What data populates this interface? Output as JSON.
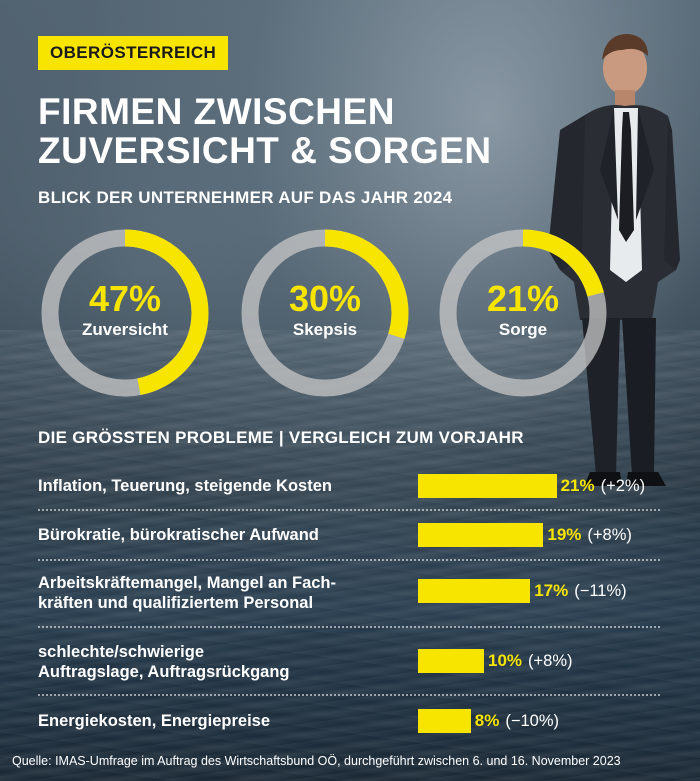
{
  "region_tag": "OBERÖSTERREICH",
  "title_line1": "FIRMEN ZWISCHEN",
  "title_line2": "ZUVERSICHT & SORGEN",
  "subtitle": "BLICK DER UNTERNEHMER AUF DAS JAHR 2024",
  "colors": {
    "accent": "#f7e500",
    "ring_track": "#c8c8c8",
    "text": "#ffffff"
  },
  "chart_data": [
    {
      "type": "pie",
      "title": "BLICK DER UNTERNEHMER AUF DAS JAHR 2024",
      "categories": [
        "Zuversicht",
        "Skepsis",
        "Sorge"
      ],
      "values": [
        47,
        30,
        21
      ],
      "value_labels": [
        "47%",
        "30%",
        "21%"
      ],
      "unit": "%"
    },
    {
      "type": "bar",
      "title": "DIE GRÖSSTEN PROBLEME | VERGLEICH ZUM VORJAHR",
      "categories": [
        "Inflation, Teuerung, steigende Kosten",
        "Bürokratie, bürokratischer Aufwand",
        "Arbeitskräftemangel, Mangel an Fach-kräften und qualifiziertem Personal",
        "schlechte/schwierige Auftragslage, Auftragsrückgang",
        "Energiekosten, Energiepreise"
      ],
      "values": [
        21,
        19,
        17,
        10,
        8
      ],
      "value_labels": [
        "21%",
        "19%",
        "17%",
        "10%",
        "8%"
      ],
      "changes": [
        "(+2%)",
        "(+8%)",
        "(−11%)",
        "(+8%)",
        "(−10%)"
      ],
      "unit": "%"
    }
  ],
  "donuts": [
    {
      "pct": "47%",
      "label": "Zuversicht"
    },
    {
      "pct": "30%",
      "label": "Skepsis"
    },
    {
      "pct": "21%",
      "label": "Sorge"
    }
  ],
  "problems_heading": "DIE GRÖSSTEN PROBLEME | VERGLEICH ZUM VORJAHR",
  "problems": [
    {
      "line1": "Inflation, Teuerung, steigende Kosten",
      "line2": "",
      "value": "21%",
      "change": "(+2%)"
    },
    {
      "line1": "Bürokratie, bürokratischer Aufwand",
      "line2": "",
      "value": "19%",
      "change": "(+8%)"
    },
    {
      "line1": "Arbeitskräftemangel, Mangel an Fach-",
      "line2": "kräften und qualifiziertem Personal",
      "value": "17%",
      "change": "(−11%)"
    },
    {
      "line1": "schlechte/schwierige",
      "line2": "Auftragslage, Auftragsrückgang",
      "value": "10%",
      "change": "(+8%)"
    },
    {
      "line1": "Energiekosten, Energiepreise",
      "line2": "",
      "value": "8%",
      "change": "(−10%)"
    }
  ],
  "source": "Quelle: IMAS-Umfrage im Auftrag des Wirtschaftsbund OÖ, durchgeführt zwischen 6. und 16. November 2023"
}
